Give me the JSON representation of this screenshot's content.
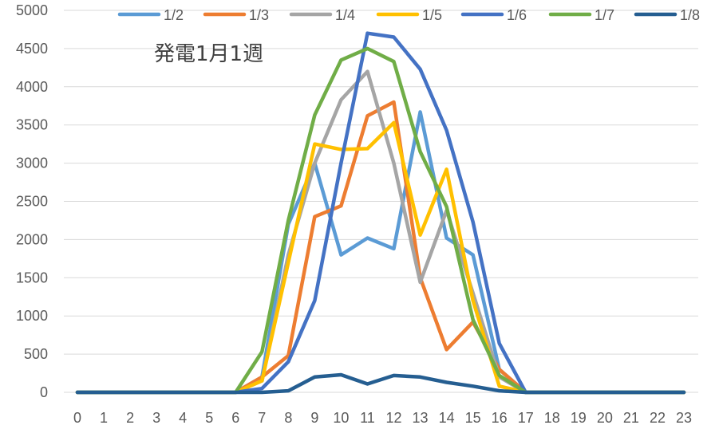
{
  "chart_data": {
    "type": "line",
    "title": "発電1月1週",
    "xlabel": "",
    "ylabel": "",
    "x": [
      0,
      1,
      2,
      3,
      4,
      5,
      6,
      7,
      8,
      9,
      10,
      11,
      12,
      13,
      14,
      15,
      16,
      17,
      18,
      19,
      20,
      21,
      22,
      23
    ],
    "ylim": [
      0,
      5000
    ],
    "yticks": [
      0,
      500,
      1000,
      1500,
      2000,
      2500,
      3000,
      3500,
      4000,
      4500,
      5000
    ],
    "grid": "horizontal",
    "legend": "top",
    "series": [
      {
        "name": "1/2",
        "color": "#5b9bd5",
        "values": [
          0,
          0,
          0,
          0,
          0,
          0,
          0,
          200,
          2200,
          3000,
          1800,
          2020,
          1880,
          3670,
          2020,
          1800,
          300,
          0,
          0,
          0,
          0,
          0,
          0,
          0
        ]
      },
      {
        "name": "1/3",
        "color": "#ed7d31",
        "values": [
          0,
          0,
          0,
          0,
          0,
          0,
          0,
          200,
          480,
          2300,
          2440,
          3620,
          3800,
          1500,
          560,
          920,
          300,
          0,
          0,
          0,
          0,
          0,
          0,
          0
        ]
      },
      {
        "name": "1/4",
        "color": "#a5a5a5",
        "values": [
          0,
          0,
          0,
          0,
          0,
          0,
          0,
          150,
          1800,
          3000,
          3830,
          4200,
          3000,
          1440,
          2380,
          1300,
          200,
          0,
          0,
          0,
          0,
          0,
          0,
          0
        ]
      },
      {
        "name": "1/5",
        "color": "#ffc000",
        "values": [
          0,
          0,
          0,
          0,
          0,
          0,
          0,
          150,
          1700,
          3250,
          3180,
          3190,
          3530,
          2060,
          2920,
          1200,
          80,
          0,
          0,
          0,
          0,
          0,
          0,
          0
        ]
      },
      {
        "name": "1/6",
        "color": "#4472c4",
        "values": [
          0,
          0,
          0,
          0,
          0,
          0,
          0,
          50,
          400,
          1200,
          3000,
          4700,
          4650,
          4230,
          3430,
          2230,
          640,
          0,
          0,
          0,
          0,
          0,
          0,
          0
        ]
      },
      {
        "name": "1/7",
        "color": "#70ad47",
        "values": [
          0,
          0,
          0,
          0,
          0,
          0,
          0,
          530,
          2250,
          3630,
          4350,
          4500,
          4330,
          3150,
          2430,
          950,
          220,
          0,
          0,
          0,
          0,
          0,
          0,
          0
        ]
      },
      {
        "name": "1/8",
        "color": "#255e91",
        "values": [
          0,
          0,
          0,
          0,
          0,
          0,
          0,
          0,
          20,
          200,
          230,
          110,
          220,
          200,
          130,
          80,
          20,
          0,
          0,
          0,
          0,
          0,
          0,
          0
        ]
      }
    ]
  }
}
